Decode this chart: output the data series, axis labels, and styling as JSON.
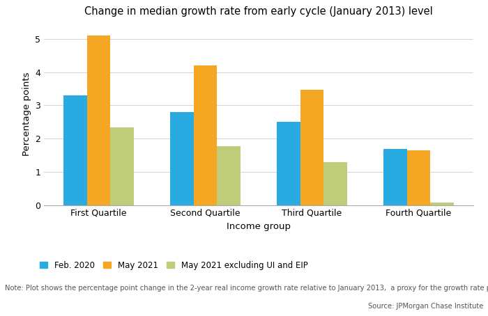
{
  "title": "Change in median growth rate from early cycle (January 2013) level",
  "categories": [
    "First Quartile",
    "Second Quartile",
    "Third Quartile",
    "Fourth Quartile"
  ],
  "series": [
    {
      "label": "Feb. 2020",
      "color": "#29ABE2",
      "values": [
        3.3,
        2.8,
        2.5,
        1.7
      ]
    },
    {
      "label": "May 2021",
      "color": "#F5A623",
      "values": [
        5.1,
        4.2,
        3.47,
        1.65
      ]
    },
    {
      "label": "May 2021 excluding UI and EIP",
      "color": "#BFCC79",
      "values": [
        2.35,
        1.77,
        1.3,
        0.08
      ]
    }
  ],
  "xlabel": "Income group",
  "ylabel": "Percentage points",
  "ylim": [
    0,
    5.5
  ],
  "yticks": [
    0,
    1,
    2,
    3,
    4,
    5
  ],
  "note": "Note: Plot shows the percentage point change in the 2-year real income growth rate relative to January 2013,  a proxy for the growth rate prevailing early in the expansion.",
  "source": "Source: JPMorgan Chase Institute",
  "background_color": "#FFFFFF",
  "grid_color": "#CCCCCC",
  "bar_width": 0.22,
  "title_fontsize": 10.5,
  "axis_label_fontsize": 9.5,
  "tick_fontsize": 9,
  "legend_fontsize": 8.5,
  "note_fontsize": 7.2
}
